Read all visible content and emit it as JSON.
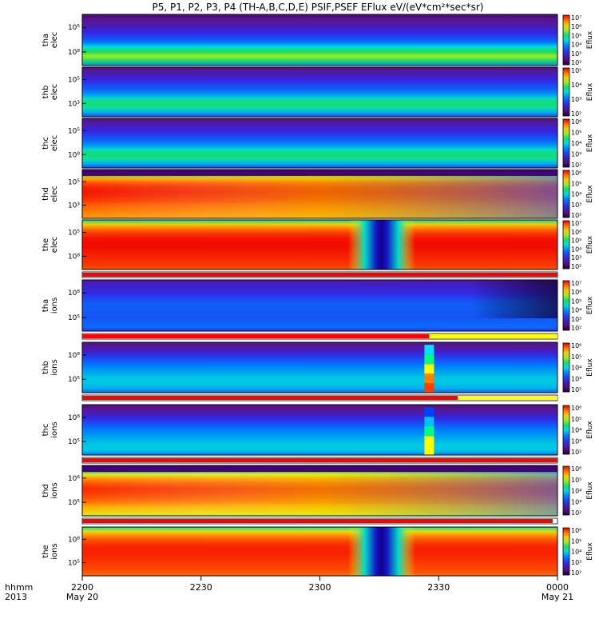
{
  "title": "P5, P1, P2, P3, P4 (TH-A,B,C,D,E) PSIF,PSEF EFlux eV/(eV*cm²*sec*sr)",
  "chart_data": {
    "type": "heatmap",
    "x_axis": {
      "ticks": [
        {
          "label": "2200",
          "sublabel": "May 20"
        },
        {
          "label": "2230",
          "sublabel": ""
        },
        {
          "label": "2300",
          "sublabel": ""
        },
        {
          "label": "2330",
          "sublabel": ""
        },
        {
          "label": "0000",
          "sublabel": "May 21"
        }
      ],
      "left_label_top": "hhmm",
      "left_label_bottom": "2013"
    },
    "panels": [
      {
        "id": "tha_elec",
        "label1": "tha",
        "label2": "elec",
        "yticks": [
          "10⁵",
          "10⁸"
        ],
        "colorbar_ticks": [
          "10⁷",
          "10⁶",
          "10⁵",
          "10⁴",
          "10³",
          "10²"
        ],
        "colorbar_label": "Eflux",
        "style": "elec_low",
        "flag_bar": false
      },
      {
        "id": "thb_elec",
        "label1": "thb",
        "label2": "elec",
        "yticks": [
          "10⁵",
          "10³"
        ],
        "colorbar_ticks": [
          "10⁵",
          "10⁴",
          "10³",
          "10²"
        ],
        "colorbar_label": "Eflux",
        "style": "elec_mid",
        "flag_bar": false
      },
      {
        "id": "thc_elec",
        "label1": "thc",
        "label2": "elec",
        "yticks": [
          "10⁵",
          "10⁸"
        ],
        "colorbar_ticks": [
          "10⁶",
          "10⁵",
          "10⁴",
          "10³",
          "10²"
        ],
        "colorbar_label": "Eflux",
        "style": "elec_mid",
        "flag_bar": false
      },
      {
        "id": "thd_elec",
        "label1": "thd",
        "label2": "elec",
        "yticks": [
          "10⁵",
          "10³"
        ],
        "colorbar_ticks": [
          "10⁶",
          "10⁵",
          "10⁴",
          "10³",
          "10²"
        ],
        "colorbar_label": "Eflux",
        "style": "hot_fade",
        "flag_bar": false
      },
      {
        "id": "the_elec",
        "label1": "the",
        "label2": "elec",
        "yticks": [
          "10⁵",
          "10⁸"
        ],
        "colorbar_ticks": [
          "10⁷",
          "10⁶",
          "10⁵",
          "10⁴",
          "10³",
          "10²"
        ],
        "colorbar_label": "Eflux",
        "style": "hot_gap",
        "flag_bar": true
      },
      {
        "id": "tha_ions",
        "label1": "tha",
        "label2": "ions",
        "yticks": [
          "10⁸",
          "10⁵"
        ],
        "colorbar_ticks": [
          "10⁷",
          "10⁶",
          "10⁵",
          "10⁴",
          "10³",
          "10²"
        ],
        "colorbar_label": "Eflux",
        "style": "ions_blue",
        "flag_bar": true
      },
      {
        "id": "thb_ions",
        "label1": "thb",
        "label2": "ions",
        "yticks": [
          "10⁸",
          "10⁵"
        ],
        "colorbar_ticks": [
          "10⁶",
          "10⁵",
          "10⁴",
          "10³",
          "10²"
        ],
        "colorbar_label": "Eflux",
        "style": "ions_spike_a",
        "flag_bar": true
      },
      {
        "id": "thc_ions",
        "label1": "thc",
        "label2": "ions",
        "yticks": [
          "10⁸",
          "10⁵"
        ],
        "colorbar_ticks": [
          "10⁶",
          "10⁵",
          "10⁴",
          "10³",
          "10²"
        ],
        "colorbar_label": "Eflux",
        "style": "ions_spike_b",
        "flag_bar": true
      },
      {
        "id": "thd_ions",
        "label1": "thd",
        "label2": "ions",
        "yticks": [
          "10⁶",
          "10⁵"
        ],
        "colorbar_ticks": [
          "10⁶",
          "10⁵",
          "10⁴",
          "10³",
          "10²"
        ],
        "colorbar_label": "Eflux",
        "style": "hot_fade_ions",
        "flag_bar": true
      },
      {
        "id": "the_ions",
        "label1": "the",
        "label2": "ions",
        "yticks": [
          "10⁸",
          "10⁵"
        ],
        "colorbar_ticks": [
          "10⁶",
          "10⁵",
          "10⁴",
          "10³",
          "10²"
        ],
        "colorbar_label": "Eflux",
        "style": "hot_gap_ions",
        "flag_bar": false
      }
    ],
    "flag_bars": [
      {
        "after": "the_elec",
        "segments": [
          {
            "from": 0.0,
            "to": 1.0,
            "color": "#ff0000"
          }
        ]
      },
      {
        "after": "tha_ions",
        "segments": [
          {
            "from": 0.0,
            "to": 0.73,
            "color": "#ff0000"
          },
          {
            "from": 0.73,
            "to": 1.0,
            "color": "#ffff00"
          }
        ]
      },
      {
        "after": "thb_ions",
        "segments": [
          {
            "from": 0.0,
            "to": 0.79,
            "color": "#ff0000"
          },
          {
            "from": 0.79,
            "to": 1.0,
            "color": "#ffff00"
          }
        ]
      },
      {
        "after": "thc_ions",
        "segments": [
          {
            "from": 0.0,
            "to": 1.0,
            "color": "#ff0000"
          }
        ]
      },
      {
        "after": "thd_ions",
        "segments": [
          {
            "from": 0.0,
            "to": 0.99,
            "color": "#ff0000"
          }
        ]
      }
    ]
  }
}
